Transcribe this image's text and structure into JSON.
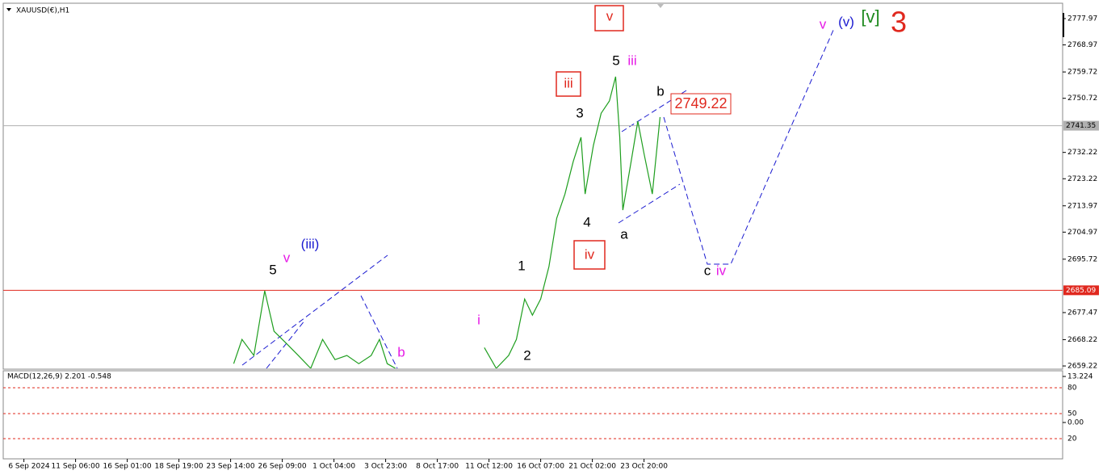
{
  "chart_data": {
    "type": "line",
    "title": "XAUUSD(€),H1",
    "categories": [
      "6 Sep 2024",
      "11 Sep 06:00",
      "16 Sep 01:00",
      "18 Sep 19:00",
      "23 Sep 14:00",
      "26 Sep 09:00",
      "1 Oct 04:00",
      "3 Oct 23:00",
      "8 Oct 17:00",
      "11 Oct 12:00",
      "16 Oct 07:00",
      "21 Oct 02:00",
      "23 Oct 20:00"
    ],
    "xlim": [
      -0.4,
      20.1
    ],
    "ylim": [
      2658.4,
      2782.94
    ],
    "yticks": [
      2777.97,
      2768.97,
      2759.72,
      2750.72,
      2732.22,
      2723.22,
      2713.97,
      2704.97,
      2695.72,
      2677.47,
      2668.22,
      2659.22
    ],
    "levels": [
      {
        "value": 2741.35,
        "color": "#b0b0b0"
      },
      {
        "value": 2685.09,
        "color": "#e0281e"
      }
    ],
    "series": [
      {
        "name": "XAUUSD",
        "color": "#1e9e1e",
        "x": [
          4.06,
          4.22,
          4.45,
          4.66,
          4.84,
          5.08,
          5.31,
          5.55,
          5.78,
          6.02,
          6.25,
          6.48,
          6.72,
          6.88,
          7.03,
          7.19,
          7.8,
          8.91,
          9.14,
          9.38,
          9.53,
          9.69,
          9.84,
          10.0,
          10.16,
          10.31,
          10.47,
          10.63,
          10.78,
          10.86,
          11.02,
          11.17,
          11.33,
          11.45,
          11.53,
          11.59,
          11.75,
          11.88,
          12.0,
          12.16,
          12.31
        ],
        "values": [
          2660.0,
          2668.3,
          2662.8,
          2684.9,
          2671.1,
          2666.9,
          2662.8,
          2658.4,
          2668.3,
          2661.4,
          2662.8,
          2660.0,
          2662.8,
          2668.3,
          2660.0,
          2658.4,
          null,
          2665.5,
          2658.4,
          2662.8,
          2668.3,
          2682.1,
          2676.6,
          2682.1,
          2693.2,
          2709.7,
          2718.0,
          2729.1,
          2737.4,
          2718.0,
          2734.6,
          2745.6,
          2749.8,
          2758.1,
          2737.4,
          2712.5,
          2729.1,
          2742.9,
          2731.8,
          2718.0,
          2744.3
        ]
      }
    ],
    "annotations": [
      "5",
      "v",
      "(iii)",
      "i",
      "b",
      "1",
      "2",
      "3",
      "4",
      "5",
      "iii",
      "iii",
      "v",
      "iv",
      "b",
      "a",
      "c",
      "iv",
      "2749.22",
      "v",
      "(v)",
      "[v]",
      "3"
    ],
    "macd": {
      "label": "MACD(12,26,9) 2.201 -0.548",
      "yticks": [
        13.224,
        80,
        50,
        {
          "value": 0,
          "label": "0.00"
        },
        20
      ]
    }
  }
}
